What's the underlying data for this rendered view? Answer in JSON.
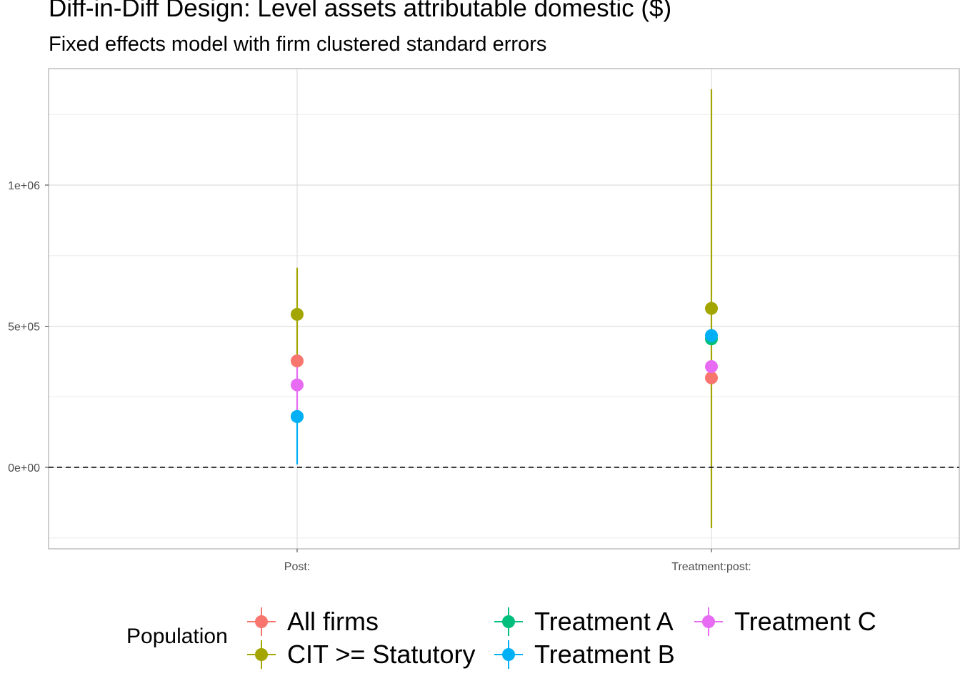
{
  "title": "Diff-in-Diff Design: Level assets attributable domestic  ($)",
  "subtitle": "Fixed effects model with firm clustered standard errors",
  "legend_title": "Population",
  "colors": {
    "All firms": "#F8766D",
    "CIT >= Statutory": "#A3A500",
    "Treatment A": "#00BF7D",
    "Treatment B": "#00B0F6",
    "Treatment C": "#E76BF3"
  },
  "chart_data": {
    "type": "scatter",
    "categories": [
      "Post:",
      "Treatment:post:"
    ],
    "ylim": [
      -290000,
      1410000
    ],
    "y_ticks": [
      0,
      500000,
      1000000
    ],
    "y_tick_labels": [
      "0e+00",
      "5e+05",
      "1e+06"
    ],
    "reference_line": 0,
    "grid": true,
    "legend_position": "bottom",
    "series": [
      {
        "name": "All firms",
        "points": [
          {
            "x": "Post:",
            "y": 377000,
            "lo": 377000,
            "hi": 377000
          },
          {
            "x": "Treatment:post:",
            "y": 317000,
            "lo": 317000,
            "hi": 317000
          }
        ]
      },
      {
        "name": "CIT >= Statutory",
        "points": [
          {
            "x": "Post:",
            "y": 542000,
            "lo": 382000,
            "hi": 707000
          },
          {
            "x": "Treatment:post:",
            "y": 563000,
            "lo": -215000,
            "hi": 1340000
          }
        ]
      },
      {
        "name": "Treatment A",
        "points": [
          {
            "x": "Post:",
            "y": 180000,
            "lo": 180000,
            "hi": 180000
          },
          {
            "x": "Treatment:post:",
            "y": 455000,
            "lo": 455000,
            "hi": 455000
          }
        ]
      },
      {
        "name": "Treatment B",
        "points": [
          {
            "x": "Post:",
            "y": 180000,
            "lo": 10000,
            "hi": 180000
          },
          {
            "x": "Treatment:post:",
            "y": 467000,
            "lo": 467000,
            "hi": 467000
          }
        ]
      },
      {
        "name": "Treatment C",
        "points": [
          {
            "x": "Post:",
            "y": 292000,
            "lo": 177000,
            "hi": 377000
          },
          {
            "x": "Treatment:post:",
            "y": 357000,
            "lo": 357000,
            "hi": 357000
          }
        ]
      }
    ]
  }
}
